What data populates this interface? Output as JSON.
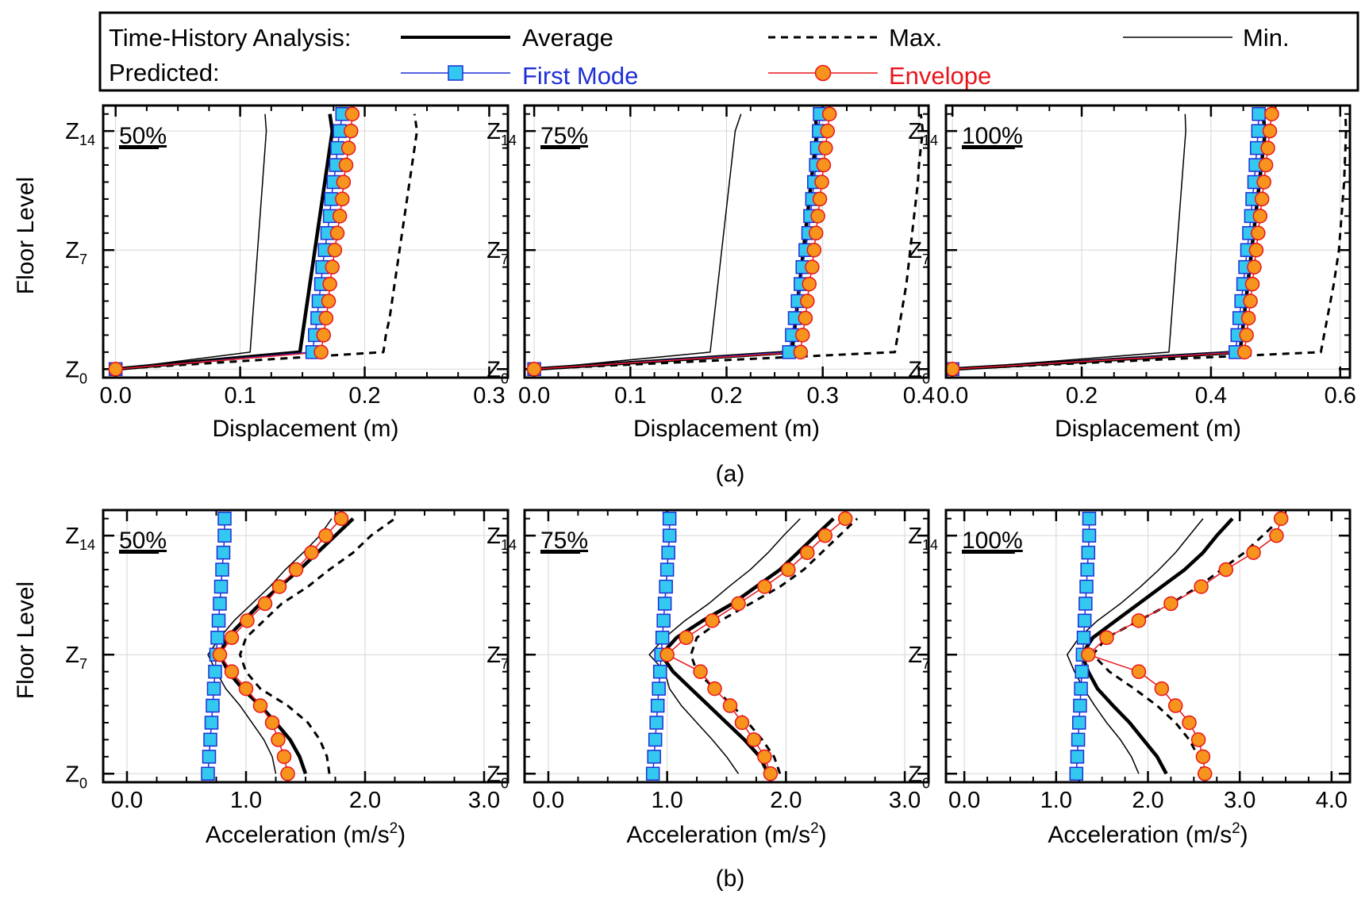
{
  "legend": {
    "row1_label": "Time-History Analysis:",
    "row2_label": "Predicted:",
    "average": "Average",
    "max": "Max.",
    "min": "Min.",
    "first_mode": "First Mode",
    "envelope": "Envelope"
  },
  "colors": {
    "first_mode_line": "#1f2fd6",
    "first_mode_marker": "#33c8f0",
    "envelope_line": "#e8151b",
    "envelope_marker": "#f7941d",
    "first_mode_text": "#1f2fd6",
    "envelope_text": "#e8151b"
  },
  "captions": {
    "a": "(a)",
    "b": "(b)"
  },
  "row_ylabel": "Floor Level",
  "chart_data": [
    {
      "type": "line",
      "row": "a",
      "col": 0,
      "panel_label": "50%",
      "xlabel": "Displacement (m)",
      "ylabel": "Floor Level",
      "xlim": [
        -0.01,
        0.315
      ],
      "xticks": [
        0.0,
        0.1,
        0.2,
        0.3
      ],
      "xtick_labels": [
        "0.0",
        "0.1",
        "0.2",
        "0.3"
      ],
      "ylim": [
        -0.5,
        15.5
      ],
      "yticks": [
        0,
        7,
        14
      ],
      "ytick_labels": [
        {
          "base": "Z",
          "sub": "0"
        },
        {
          "base": "Z",
          "sub": "7"
        },
        {
          "base": "Z",
          "sub": "14"
        }
      ],
      "floors": [
        0,
        1,
        2,
        3,
        4,
        5,
        6,
        7,
        8,
        9,
        10,
        11,
        12,
        13,
        14,
        15
      ],
      "series": [
        {
          "name": "Average",
          "style": "thick",
          "values": [
            0,
            0.148,
            0.15,
            0.152,
            0.154,
            0.156,
            0.158,
            0.16,
            0.162,
            0.164,
            0.166,
            0.168,
            0.17,
            0.172,
            0.174,
            0.172
          ]
        },
        {
          "name": "Max.",
          "style": "dashed",
          "values": [
            0,
            0.215,
            0.217,
            0.22,
            0.222,
            0.224,
            0.226,
            0.228,
            0.23,
            0.232,
            0.234,
            0.236,
            0.238,
            0.24,
            0.242,
            0.24
          ]
        },
        {
          "name": "Min.",
          "style": "thin",
          "values": [
            0,
            0.108,
            0.109,
            0.11,
            0.111,
            0.112,
            0.113,
            0.114,
            0.115,
            0.116,
            0.117,
            0.118,
            0.119,
            0.12,
            0.121,
            0.12
          ]
        },
        {
          "name": "First Mode",
          "style": "squares",
          "values": [
            0,
            0.158,
            0.16,
            0.162,
            0.163,
            0.165,
            0.166,
            0.168,
            0.17,
            0.172,
            0.173,
            0.175,
            0.177,
            0.178,
            0.18,
            0.182
          ]
        },
        {
          "name": "Envelope",
          "style": "circles",
          "values": [
            0,
            0.165,
            0.167,
            0.169,
            0.171,
            0.172,
            0.174,
            0.176,
            0.178,
            0.18,
            0.182,
            0.183,
            0.185,
            0.187,
            0.189,
            0.19
          ]
        }
      ]
    },
    {
      "type": "line",
      "row": "a",
      "col": 1,
      "panel_label": "75%",
      "xlabel": "Displacement (m)",
      "ylabel": "Floor Level",
      "xlim": [
        -0.01,
        0.41
      ],
      "xticks": [
        0.0,
        0.1,
        0.2,
        0.3,
        0.4
      ],
      "xtick_labels": [
        "0.0",
        "0.1",
        "0.2",
        "0.3",
        "0.4"
      ],
      "ylim": [
        -0.5,
        15.5
      ],
      "yticks": [
        0,
        7,
        14
      ],
      "ytick_labels": [
        {
          "base": "Z",
          "sub": "0"
        },
        {
          "base": "Z",
          "sub": "7"
        },
        {
          "base": "Z",
          "sub": "14"
        }
      ],
      "floors": [
        0,
        1,
        2,
        3,
        4,
        5,
        6,
        7,
        8,
        9,
        10,
        11,
        12,
        13,
        14,
        15
      ],
      "series": [
        {
          "name": "Average",
          "style": "thick",
          "values": [
            0,
            0.268,
            0.27,
            0.272,
            0.274,
            0.276,
            0.278,
            0.28,
            0.282,
            0.284,
            0.286,
            0.288,
            0.29,
            0.292,
            0.294,
            0.292
          ]
        },
        {
          "name": "Max.",
          "style": "dashed",
          "values": [
            0,
            0.375,
            0.378,
            0.381,
            0.384,
            0.387,
            0.389,
            0.391,
            0.393,
            0.395,
            0.397,
            0.399,
            0.4,
            0.402,
            0.404,
            0.402
          ]
        },
        {
          "name": "Min.",
          "style": "thin",
          "values": [
            0,
            0.183,
            0.185,
            0.187,
            0.189,
            0.191,
            0.193,
            0.195,
            0.197,
            0.199,
            0.201,
            0.203,
            0.205,
            0.207,
            0.209,
            0.215
          ]
        },
        {
          "name": "First Mode",
          "style": "squares",
          "values": [
            0,
            0.265,
            0.268,
            0.271,
            0.274,
            0.277,
            0.279,
            0.282,
            0.285,
            0.287,
            0.289,
            0.291,
            0.293,
            0.294,
            0.296,
            0.297
          ]
        },
        {
          "name": "Envelope",
          "style": "circles",
          "values": [
            0,
            0.277,
            0.279,
            0.282,
            0.284,
            0.286,
            0.289,
            0.291,
            0.293,
            0.295,
            0.297,
            0.299,
            0.301,
            0.303,
            0.305,
            0.307
          ]
        }
      ]
    },
    {
      "type": "line",
      "row": "a",
      "col": 2,
      "panel_label": "100%",
      "xlabel": "Displacement (m)",
      "ylabel": "Floor Level",
      "xlim": [
        -0.01,
        0.615
      ],
      "xticks": [
        0.0,
        0.2,
        0.4,
        0.6
      ],
      "xtick_labels": [
        "0.0",
        "0.2",
        "0.4",
        "0.6"
      ],
      "ylim": [
        -0.5,
        15.5
      ],
      "yticks": [
        0,
        7,
        14
      ],
      "ytick_labels": [
        {
          "base": "Z",
          "sub": "0"
        },
        {
          "base": "Z",
          "sub": "7"
        },
        {
          "base": "Z",
          "sub": "14"
        }
      ],
      "floors": [
        0,
        1,
        2,
        3,
        4,
        5,
        6,
        7,
        8,
        9,
        10,
        11,
        12,
        13,
        14,
        15
      ],
      "series": [
        {
          "name": "Average",
          "style": "thick",
          "values": [
            0,
            0.445,
            0.448,
            0.451,
            0.454,
            0.457,
            0.46,
            0.463,
            0.466,
            0.469,
            0.472,
            0.475,
            0.478,
            0.481,
            0.484,
            0.48
          ]
        },
        {
          "name": "Max.",
          "style": "dashed",
          "values": [
            0,
            0.57,
            0.575,
            0.58,
            0.585,
            0.59,
            0.594,
            0.598,
            0.6,
            0.602,
            0.604,
            0.606,
            0.607,
            0.608,
            0.609,
            0.608
          ]
        },
        {
          "name": "Min.",
          "style": "thin",
          "values": [
            0,
            0.335,
            0.337,
            0.339,
            0.341,
            0.343,
            0.345,
            0.347,
            0.349,
            0.351,
            0.353,
            0.355,
            0.357,
            0.359,
            0.361,
            0.36
          ]
        },
        {
          "name": "First Mode",
          "style": "squares",
          "values": [
            0,
            0.438,
            0.441,
            0.444,
            0.447,
            0.45,
            0.453,
            0.456,
            0.459,
            0.462,
            0.464,
            0.467,
            0.469,
            0.471,
            0.473,
            0.474
          ]
        },
        {
          "name": "Envelope",
          "style": "circles",
          "values": [
            0,
            0.452,
            0.455,
            0.458,
            0.461,
            0.464,
            0.467,
            0.47,
            0.473,
            0.476,
            0.479,
            0.482,
            0.485,
            0.488,
            0.491,
            0.494
          ]
        }
      ]
    },
    {
      "type": "line",
      "row": "b",
      "col": 0,
      "panel_label": "50%",
      "xlabel": "Acceleration (m/s",
      "xlabel_sup": "2",
      "xlabel_tail": ")",
      "ylabel": "Floor Level",
      "xlim": [
        -0.2,
        3.2
      ],
      "xticks": [
        0.0,
        1.0,
        2.0,
        3.0
      ],
      "xtick_labels": [
        "0.0",
        "1.0",
        "2.0",
        "3.0"
      ],
      "ylim": [
        -0.5,
        15.5
      ],
      "yticks": [
        0,
        7,
        14
      ],
      "ytick_labels": [
        {
          "base": "Z",
          "sub": "0"
        },
        {
          "base": "Z",
          "sub": "7"
        },
        {
          "base": "Z",
          "sub": "14"
        }
      ],
      "floors": [
        0,
        1,
        2,
        3,
        4,
        5,
        6,
        7,
        8,
        9,
        10,
        11,
        12,
        13,
        14,
        15
      ],
      "series": [
        {
          "name": "Average",
          "style": "thick",
          "values": [
            1.5,
            1.45,
            1.37,
            1.25,
            1.12,
            0.97,
            0.85,
            0.78,
            0.84,
            0.98,
            1.12,
            1.28,
            1.45,
            1.6,
            1.75,
            1.9
          ]
        },
        {
          "name": "Max.",
          "style": "dashed",
          "values": [
            1.7,
            1.68,
            1.62,
            1.52,
            1.35,
            1.12,
            1.0,
            0.95,
            1.0,
            1.15,
            1.3,
            1.52,
            1.7,
            1.9,
            2.05,
            2.25
          ]
        },
        {
          "name": "Min.",
          "style": "thin",
          "values": [
            1.25,
            1.22,
            1.15,
            1.05,
            0.95,
            0.83,
            0.75,
            0.68,
            0.78,
            0.9,
            1.05,
            1.2,
            1.33,
            1.48,
            1.62,
            1.72
          ]
        },
        {
          "name": "First Mode",
          "style": "squares",
          "values": [
            0.68,
            0.69,
            0.7,
            0.71,
            0.72,
            0.73,
            0.74,
            0.75,
            0.76,
            0.77,
            0.78,
            0.79,
            0.8,
            0.81,
            0.82,
            0.82
          ]
        },
        {
          "name": "Envelope",
          "style": "circles",
          "values": [
            1.35,
            1.32,
            1.27,
            1.22,
            1.12,
            1.0,
            0.88,
            0.78,
            0.88,
            1.01,
            1.16,
            1.28,
            1.42,
            1.55,
            1.67,
            1.8
          ]
        }
      ]
    },
    {
      "type": "line",
      "row": "b",
      "col": 1,
      "panel_label": "75%",
      "xlabel": "Acceleration (m/s",
      "xlabel_sup": "2",
      "xlabel_tail": ")",
      "ylabel": "Floor Level",
      "xlim": [
        -0.2,
        3.2
      ],
      "xticks": [
        0.0,
        1.0,
        2.0,
        3.0
      ],
      "xtick_labels": [
        "0.0",
        "1.0",
        "2.0",
        "3.0"
      ],
      "ylim": [
        -0.5,
        15.5
      ],
      "yticks": [
        0,
        7,
        14
      ],
      "ytick_labels": [
        {
          "base": "Z",
          "sub": "0"
        },
        {
          "base": "Z",
          "sub": "7"
        },
        {
          "base": "Z",
          "sub": "14"
        }
      ],
      "floors": [
        0,
        1,
        2,
        3,
        4,
        5,
        6,
        7,
        8,
        9,
        10,
        11,
        12,
        13,
        14,
        15
      ],
      "series": [
        {
          "name": "Average",
          "style": "thick",
          "values": [
            1.85,
            1.78,
            1.65,
            1.5,
            1.35,
            1.2,
            1.05,
            0.95,
            1.08,
            1.3,
            1.55,
            1.75,
            1.95,
            2.1,
            2.25,
            2.4
          ]
        },
        {
          "name": "Max.",
          "style": "dashed",
          "values": [
            1.95,
            1.9,
            1.8,
            1.68,
            1.55,
            1.4,
            1.25,
            1.2,
            1.25,
            1.45,
            1.7,
            1.95,
            2.15,
            2.3,
            2.45,
            2.6
          ]
        },
        {
          "name": "Min.",
          "style": "thin",
          "values": [
            1.6,
            1.5,
            1.38,
            1.25,
            1.12,
            1.02,
            0.98,
            0.85,
            0.98,
            1.15,
            1.35,
            1.52,
            1.7,
            1.85,
            1.98,
            2.12
          ]
        },
        {
          "name": "First Mode",
          "style": "squares",
          "values": [
            0.88,
            0.89,
            0.9,
            0.91,
            0.92,
            0.93,
            0.94,
            0.95,
            0.96,
            0.97,
            0.98,
            0.99,
            1.0,
            1.01,
            1.02,
            1.02
          ]
        },
        {
          "name": "Envelope",
          "style": "circles",
          "values": [
            1.87,
            1.82,
            1.73,
            1.63,
            1.53,
            1.4,
            1.28,
            1.0,
            1.16,
            1.38,
            1.6,
            1.82,
            2.02,
            2.18,
            2.33,
            2.5
          ]
        }
      ]
    },
    {
      "type": "line",
      "row": "b",
      "col": 2,
      "panel_label": "100%",
      "xlabel": "Acceleration (m/s",
      "xlabel_sup": "2",
      "xlabel_tail": ")",
      "ylabel": "Floor Level",
      "xlim": [
        -0.2,
        4.2
      ],
      "xticks": [
        0.0,
        1.0,
        2.0,
        3.0,
        4.0
      ],
      "xtick_labels": [
        "0.0",
        "1.0",
        "2.0",
        "3.0",
        "4.0"
      ],
      "ylim": [
        -0.5,
        15.5
      ],
      "yticks": [
        0,
        7,
        14
      ],
      "ytick_labels": [
        {
          "base": "Z",
          "sub": "0"
        },
        {
          "base": "Z",
          "sub": "7"
        },
        {
          "base": "Z",
          "sub": "14"
        }
      ],
      "floors": [
        0,
        1,
        2,
        3,
        4,
        5,
        6,
        7,
        8,
        9,
        10,
        11,
        12,
        13,
        14,
        15
      ],
      "series": [
        {
          "name": "Average",
          "style": "thick",
          "values": [
            2.2,
            2.1,
            1.95,
            1.8,
            1.62,
            1.45,
            1.35,
            1.28,
            1.4,
            1.65,
            1.9,
            2.15,
            2.4,
            2.6,
            2.75,
            2.92
          ]
        },
        {
          "name": "Max.",
          "style": "dashed",
          "values": [
            2.6,
            2.55,
            2.45,
            2.3,
            2.1,
            1.85,
            1.58,
            1.4,
            1.55,
            1.9,
            2.25,
            2.55,
            2.8,
            3.05,
            3.25,
            3.45
          ]
        },
        {
          "name": "Min.",
          "style": "thin",
          "values": [
            1.9,
            1.82,
            1.7,
            1.55,
            1.42,
            1.3,
            1.2,
            1.12,
            1.25,
            1.45,
            1.7,
            1.92,
            2.12,
            2.3,
            2.45,
            2.6
          ]
        },
        {
          "name": "First Mode",
          "style": "squares",
          "values": [
            1.22,
            1.23,
            1.24,
            1.25,
            1.26,
            1.27,
            1.28,
            1.29,
            1.3,
            1.31,
            1.32,
            1.33,
            1.34,
            1.35,
            1.36,
            1.36
          ]
        },
        {
          "name": "Envelope",
          "style": "circles",
          "values": [
            2.62,
            2.6,
            2.55,
            2.45,
            2.3,
            2.15,
            1.9,
            1.35,
            1.55,
            1.9,
            2.25,
            2.58,
            2.85,
            3.15,
            3.4,
            3.45
          ]
        }
      ]
    }
  ]
}
